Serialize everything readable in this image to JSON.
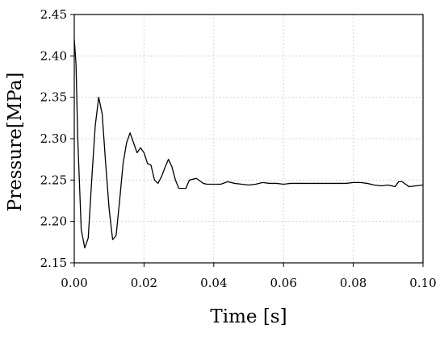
{
  "chart_data": {
    "type": "line",
    "title": "",
    "xlabel": "Time [s]",
    "ylabel": "Pressure[MPa]",
    "xlim": [
      0.0,
      0.1
    ],
    "ylim": [
      2.15,
      2.45
    ],
    "x_ticks": [
      "0.00",
      "0.02",
      "0.04",
      "0.06",
      "0.08",
      "0.10"
    ],
    "x_tick_values": [
      0.0,
      0.02,
      0.04,
      0.06,
      0.08,
      0.1
    ],
    "y_ticks": [
      "2.15",
      "2.20",
      "2.25",
      "2.30",
      "2.35",
      "2.40",
      "2.45"
    ],
    "y_tick_values": [
      2.15,
      2.2,
      2.25,
      2.3,
      2.35,
      2.4,
      2.45
    ],
    "grid": true,
    "grid_style": "dotted",
    "line_color": "#000000",
    "series": [
      {
        "x": [
          0.0,
          0.0005,
          0.001,
          0.002,
          0.003,
          0.004,
          0.005,
          0.006,
          0.007,
          0.008,
          0.009,
          0.01,
          0.011,
          0.012,
          0.013,
          0.014,
          0.015,
          0.016,
          0.017,
          0.018,
          0.019,
          0.02,
          0.021,
          0.022,
          0.023,
          0.024,
          0.025,
          0.026,
          0.027,
          0.028,
          0.029,
          0.03,
          0.031,
          0.032,
          0.033,
          0.034,
          0.035,
          0.036,
          0.037,
          0.038,
          0.04,
          0.042,
          0.044,
          0.046,
          0.048,
          0.05,
          0.052,
          0.054,
          0.056,
          0.058,
          0.06,
          0.062,
          0.064,
          0.066,
          0.068,
          0.07,
          0.072,
          0.074,
          0.076,
          0.078,
          0.08,
          0.082,
          0.084,
          0.086,
          0.088,
          0.09,
          0.092,
          0.093,
          0.094,
          0.096,
          0.098,
          0.1
        ],
        "y": [
          2.42,
          2.39,
          2.3,
          2.19,
          2.168,
          2.18,
          2.25,
          2.315,
          2.35,
          2.33,
          2.27,
          2.215,
          2.178,
          2.183,
          2.225,
          2.27,
          2.295,
          2.307,
          2.295,
          2.283,
          2.289,
          2.283,
          2.27,
          2.268,
          2.25,
          2.246,
          2.254,
          2.265,
          2.275,
          2.266,
          2.25,
          2.24,
          2.24,
          2.24,
          2.25,
          2.251,
          2.252,
          2.249,
          2.246,
          2.245,
          2.245,
          2.245,
          2.248,
          2.246,
          2.245,
          2.244,
          2.245,
          2.247,
          2.246,
          2.246,
          2.245,
          2.246,
          2.246,
          2.246,
          2.246,
          2.246,
          2.246,
          2.246,
          2.246,
          2.246,
          2.247,
          2.247,
          2.246,
          2.244,
          2.243,
          2.244,
          2.242,
          2.248,
          2.248,
          2.242,
          2.243,
          2.244
        ]
      }
    ]
  }
}
